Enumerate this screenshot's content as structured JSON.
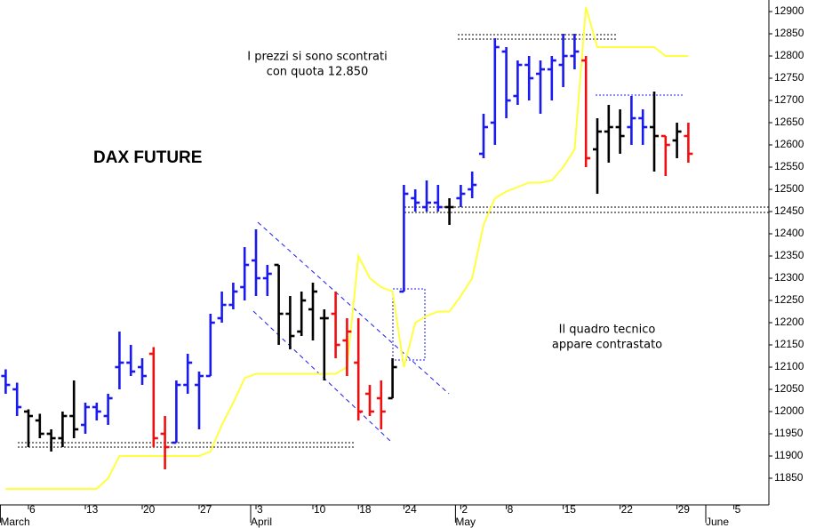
{
  "chart_data": {
    "type": "ohlc",
    "title": "DAX FUTURE",
    "annotations": [
      [
        "I prezzi si sono scontrati",
        "con quota 12.850"
      ],
      [
        "Il quadro tecnico",
        "appare contrastato"
      ]
    ],
    "categories": [
      null,
      null,
      "6",
      null,
      null,
      null,
      null,
      "13",
      null,
      null,
      null,
      null,
      "20",
      null,
      null,
      null,
      null,
      "27",
      null,
      null,
      null,
      null,
      "3",
      null,
      null,
      null,
      null,
      "10",
      null,
      null,
      null,
      "18",
      null,
      null,
      null,
      "24",
      null,
      null,
      null,
      null,
      "2",
      null,
      null,
      null,
      "8",
      null,
      null,
      null,
      null,
      "15",
      null,
      null,
      null,
      null,
      "22",
      null,
      null,
      null,
      null,
      "29",
      null,
      null,
      null,
      null,
      "5",
      null,
      null
    ],
    "months": [
      "March",
      null,
      null,
      null,
      null,
      null,
      null,
      null,
      null,
      null,
      null,
      null,
      null,
      null,
      null,
      null,
      null,
      null,
      null,
      null,
      null,
      null,
      "April",
      null,
      null,
      null,
      null,
      null,
      null,
      null,
      null,
      null,
      null,
      null,
      null,
      null,
      null,
      null,
      null,
      null,
      "May",
      null,
      null,
      null,
      null,
      null,
      null,
      null,
      null,
      null,
      null,
      null,
      null,
      null,
      null,
      null,
      null,
      null,
      null,
      null,
      null,
      null,
      "June",
      null,
      null,
      null,
      null
    ],
    "open": [
      12080,
      12050,
      12000,
      11980,
      11950,
      11940,
      11990,
      11970,
      12010,
      11990,
      12100,
      12110,
      12100,
      12130,
      11950,
      11930,
      12060,
      12060,
      12080,
      12210,
      12240,
      12280,
      12340,
      12300,
      12330,
      12220,
      12180,
      12230,
      12210,
      12220,
      12160,
      12110,
      12040,
      12030,
      12030,
      12270,
      12480,
      12460,
      12470,
      12460,
      12480,
      12500,
      12580,
      12650,
      12810,
      12710,
      12780,
      12760,
      12770,
      12780,
      12800,
      12790,
      12590,
      12630,
      12640,
      12640,
      12660,
      12640,
      12620,
      12610,
      12620,
      null,
      null,
      null,
      null,
      null,
      null
    ],
    "high": [
      12095,
      12065,
      12005,
      11995,
      11960,
      12000,
      12070,
      12020,
      12020,
      12040,
      12180,
      12150,
      12120,
      12145,
      11990,
      12070,
      12130,
      12090,
      12220,
      12270,
      12290,
      12370,
      12410,
      12330,
      12330,
      12260,
      12270,
      12290,
      12230,
      12270,
      12210,
      12210,
      12060,
      12070,
      12120,
      12510,
      12500,
      12520,
      12510,
      12480,
      12510,
      12540,
      12670,
      12840,
      12820,
      12790,
      12800,
      12790,
      12800,
      12850,
      12850,
      12800,
      12660,
      12690,
      12680,
      12710,
      12680,
      12720,
      12620,
      12650,
      12650,
      null,
      null,
      null,
      null,
      null,
      null
    ],
    "low": [
      12040,
      11990,
      11920,
      11940,
      11910,
      11920,
      11940,
      11950,
      11980,
      11970,
      12050,
      12080,
      12060,
      11920,
      11870,
      11930,
      12040,
      11960,
      12080,
      12200,
      12230,
      12250,
      12260,
      12260,
      12150,
      12140,
      12170,
      12160,
      12070,
      12120,
      12080,
      11980,
      11990,
      11960,
      12030,
      12270,
      12450,
      12450,
      12450,
      12420,
      12460,
      12480,
      12570,
      12600,
      12660,
      12690,
      12700,
      12670,
      12700,
      12730,
      12770,
      12550,
      12490,
      12560,
      12580,
      12600,
      12600,
      12540,
      12530,
      12570,
      12560,
      null,
      null,
      null,
      null,
      null,
      null
    ],
    "close": [
      12060,
      12010,
      11990,
      11950,
      11940,
      11990,
      11960,
      12010,
      12000,
      12030,
      12110,
      12090,
      12080,
      11940,
      11920,
      12060,
      12110,
      12080,
      12200,
      12240,
      12270,
      12330,
      12300,
      12310,
      12220,
      12170,
      12250,
      12270,
      12210,
      12150,
      12180,
      12000,
      12000,
      12000,
      12100,
      12490,
      12470,
      12470,
      12460,
      12460,
      12490,
      12510,
      12640,
      12820,
      12700,
      12780,
      12750,
      12770,
      12790,
      12800,
      12810,
      12570,
      12630,
      12640,
      12620,
      12660,
      12640,
      12620,
      12600,
      12630,
      12580,
      null,
      null,
      null,
      null,
      null,
      null
    ],
    "bar_colors": [
      "#1a1aee",
      "#1a1aee",
      "#000000",
      "#000000",
      "#000000",
      "#000000",
      "#000000",
      "#1a1aee",
      "#1a1aee",
      "#1a1aee",
      "#1a1aee",
      "#1a1aee",
      "#1a1aee",
      "#ee1010",
      "#ee1010",
      "#1a1aee",
      "#1a1aee",
      "#1a1aee",
      "#1a1aee",
      "#1a1aee",
      "#1a1aee",
      "#1a1aee",
      "#1a1aee",
      "#1a1aee",
      "#000000",
      "#000000",
      "#000000",
      "#000000",
      "#000000",
      "#ee1010",
      "#ee1010",
      "#ee1010",
      "#ee1010",
      "#ee1010",
      "#000000",
      "#1a1aee",
      "#1a1aee",
      "#1a1aee",
      "#1a1aee",
      "#000000",
      "#1a1aee",
      "#1a1aee",
      "#1a1aee",
      "#1a1aee",
      "#1a1aee",
      "#1a1aee",
      "#1a1aee",
      "#1a1aee",
      "#1a1aee",
      "#1a1aee",
      "#1a1aee",
      "#ee1010",
      "#000000",
      "#000000",
      "#000000",
      "#1a1aee",
      "#1a1aee",
      "#000000",
      "#ee1010",
      "#000000",
      "#ee1010",
      null,
      null,
      null,
      null,
      null,
      null
    ],
    "line_values": [
      11826,
      11826,
      11826,
      11826,
      11826,
      11826,
      11826,
      11826,
      11826,
      11850,
      11900,
      11900,
      11900,
      11900,
      11900,
      11900,
      11900,
      11900,
      11910,
      11970,
      12020,
      12075,
      12085,
      12085,
      12085,
      12085,
      12085,
      12085,
      12085,
      12085,
      12100,
      12350,
      12300,
      12280,
      12270,
      12100,
      12200,
      12215,
      12225,
      12225,
      12260,
      12300,
      12420,
      12480,
      12495,
      12505,
      12515,
      12515,
      12520,
      12550,
      12590,
      12910,
      12820,
      12820,
      12820,
      12820,
      12820,
      12820,
      12800,
      12800,
      12800,
      null,
      null,
      null,
      null,
      null,
      null
    ],
    "line_color": "#ffff40",
    "ylim": [
      11790,
      12926
    ],
    "yticks": [
      11850,
      11900,
      11950,
      12000,
      12050,
      12100,
      12150,
      12200,
      12250,
      12300,
      12350,
      12400,
      12450,
      12500,
      12550,
      12600,
      12650,
      12700,
      12750,
      12800,
      12850,
      12900
    ]
  }
}
